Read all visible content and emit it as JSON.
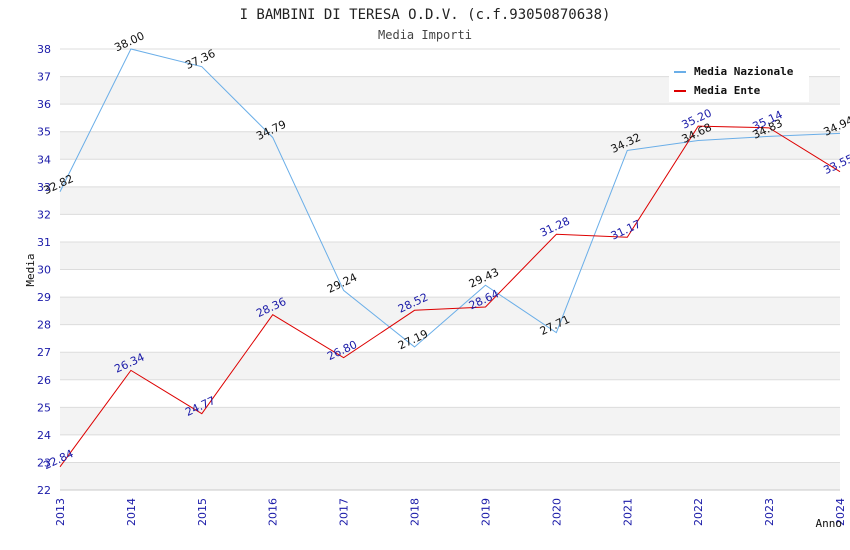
{
  "chart_data": {
    "type": "line",
    "title": "I BAMBINI DI TERESA O.D.V. (c.f.93050870638)",
    "subtitle": "Media Importi",
    "xlabel": "Anno",
    "ylabel": "Media",
    "x": [
      "2013",
      "2014",
      "2015",
      "2016",
      "2017",
      "2018",
      "2019",
      "2020",
      "2021",
      "2022",
      "2023",
      "2024"
    ],
    "ylim": [
      22,
      38
    ],
    "yticks": [
      "22",
      "23",
      "24",
      "25",
      "26",
      "27",
      "28",
      "29",
      "30",
      "31",
      "32",
      "33",
      "34",
      "35",
      "36",
      "37",
      "38"
    ],
    "grid": true,
    "legend_position": "top-right",
    "series": [
      {
        "name": "Media Nazionale",
        "color": "#6aaee8",
        "label_color": "#111111",
        "values": [
          32.82,
          38.0,
          37.36,
          34.79,
          29.24,
          27.19,
          29.43,
          27.71,
          34.32,
          34.68,
          34.83,
          34.94
        ],
        "labels": [
          "32.82",
          "38.00",
          "37.36",
          "34.79",
          "29.24",
          "27.19",
          "29.43",
          "27.71",
          "34.32",
          "34.68",
          "34.83",
          "34.94"
        ]
      },
      {
        "name": "Media Ente",
        "color": "#dd0000",
        "label_color": "#1a1aa8",
        "values": [
          22.84,
          26.34,
          24.77,
          28.36,
          26.8,
          28.52,
          28.64,
          31.28,
          31.17,
          35.2,
          35.14,
          33.55
        ],
        "labels": [
          "22.84",
          "26.34",
          "24.77",
          "28.36",
          "26.80",
          "28.52",
          "28.64",
          "31.28",
          "31.17",
          "35.20",
          "35.14",
          "33.55"
        ]
      }
    ]
  }
}
